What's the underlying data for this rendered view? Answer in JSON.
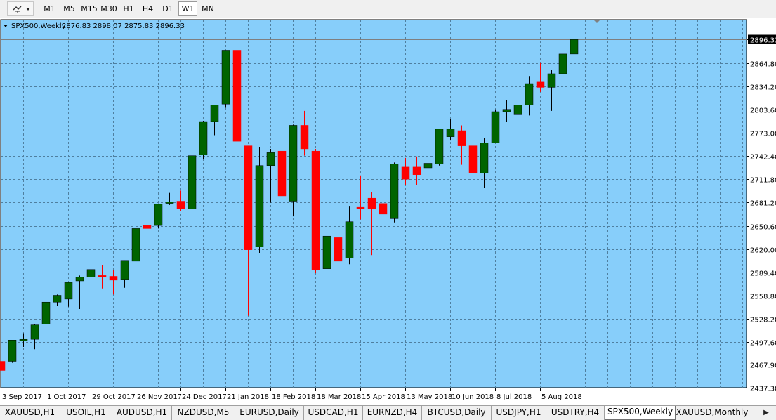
{
  "toolbar": {
    "timeframes": [
      "M1",
      "M5",
      "M15",
      "M30",
      "H1",
      "H4",
      "D1",
      "W1",
      "MN"
    ],
    "active_timeframe": "W1"
  },
  "chart_header": {
    "symbol": "SPX500,Weekly",
    "ohlc": "2876.83 2898.07 2875.83 2896.33"
  },
  "colors": {
    "background": "#87cefa",
    "bull": "#006400",
    "bear": "#ff0000",
    "wick": "#000000",
    "grid": "#4f7f9f",
    "price_line": "#7f7f7f"
  },
  "chart_data": {
    "type": "candlestick",
    "title": "SPX500,Weekly",
    "ylim": [
      2437.3,
      2911
    ],
    "y_ticks": [
      "2896.33",
      "2864.80",
      "2834.20",
      "2803.60",
      "2773.00",
      "2742.40",
      "2711.80",
      "2681.20",
      "2650.60",
      "2620.00",
      "2589.40",
      "2558.80",
      "2528.20",
      "2497.60",
      "2467.90",
      "2437.30"
    ],
    "current_price": "2896.33",
    "x_ticks": [
      "3 Sep 2017",
      "1 Oct 2017",
      "29 Oct 2017",
      "26 Nov 2017",
      "24 Dec 2017",
      "21 Jan 2018",
      "18 Feb 2018",
      "18 Mar 2018",
      "15 Apr 2018",
      "13 May 2018",
      "10 Jun 2018",
      "8 Jul 2018",
      "5 Aug 2018"
    ],
    "grid": true,
    "candles": [
      {
        "week": "3 Sep 2017",
        "o": 2472,
        "h": 2474,
        "l": 2438,
        "c": 2460
      },
      {
        "week": "10 Sep 2017",
        "o": 2472,
        "h": 2500,
        "l": 2470,
        "c": 2500
      },
      {
        "week": "17 Sep 2017",
        "o": 2500,
        "h": 2509,
        "l": 2491,
        "c": 2501
      },
      {
        "week": "24 Sep 2017",
        "o": 2501,
        "h": 2521,
        "l": 2488,
        "c": 2520
      },
      {
        "week": "1 Oct 2017",
        "o": 2521,
        "h": 2551,
        "l": 2519,
        "c": 2550
      },
      {
        "week": "8 Oct 2017",
        "o": 2550,
        "h": 2560,
        "l": 2545,
        "c": 2559
      },
      {
        "week": "15 Oct 2017",
        "o": 2554,
        "h": 2577,
        "l": 2544,
        "c": 2576
      },
      {
        "week": "22 Oct 2017",
        "o": 2578,
        "h": 2585,
        "l": 2541,
        "c": 2583
      },
      {
        "week": "29 Oct 2017",
        "o": 2583,
        "h": 2595,
        "l": 2578,
        "c": 2593
      },
      {
        "week": "5 Nov 2017",
        "o": 2585,
        "h": 2599,
        "l": 2568,
        "c": 2583
      },
      {
        "week": "12 Nov 2017",
        "o": 2584,
        "h": 2592,
        "l": 2560,
        "c": 2579
      },
      {
        "week": "19 Nov 2017",
        "o": 2580,
        "h": 2605,
        "l": 2569,
        "c": 2605
      },
      {
        "week": "26 Nov 2017",
        "o": 2604,
        "h": 2656,
        "l": 2604,
        "c": 2647
      },
      {
        "week": "3 Dec 2017",
        "o": 2651,
        "h": 2664,
        "l": 2623,
        "c": 2647
      },
      {
        "week": "10 Dec 2017",
        "o": 2651,
        "h": 2680,
        "l": 2647,
        "c": 2679
      },
      {
        "week": "17 Dec 2017",
        "o": 2681,
        "h": 2694,
        "l": 2678,
        "c": 2682
      },
      {
        "week": "24 Dec 2017",
        "o": 2683,
        "h": 2697,
        "l": 2670,
        "c": 2673
      },
      {
        "week": "31 Dec 2017",
        "o": 2673,
        "h": 2743,
        "l": 2673,
        "c": 2743
      },
      {
        "week": "7 Jan 2018",
        "o": 2744,
        "h": 2789,
        "l": 2739,
        "c": 2788
      },
      {
        "week": "14 Jan 2018",
        "o": 2788,
        "h": 2810,
        "l": 2770,
        "c": 2810
      },
      {
        "week": "21 Jan 2018",
        "o": 2811,
        "h": 2882,
        "l": 2806,
        "c": 2882
      },
      {
        "week": "28 Jan 2018",
        "o": 2882,
        "h": 2886,
        "l": 2751,
        "c": 2762
      },
      {
        "week": "4 Feb 2018",
        "o": 2756,
        "h": 2756,
        "l": 2532,
        "c": 2619
      },
      {
        "week": "11 Feb 2018",
        "o": 2623,
        "h": 2754,
        "l": 2615,
        "c": 2730
      },
      {
        "week": "18 Feb 2018",
        "o": 2730,
        "h": 2752,
        "l": 2681,
        "c": 2747
      },
      {
        "week": "25 Feb 2018",
        "o": 2749,
        "h": 2789,
        "l": 2646,
        "c": 2690
      },
      {
        "week": "4 Mar 2018",
        "o": 2683,
        "h": 2784,
        "l": 2663,
        "c": 2783
      },
      {
        "week": "11 Mar 2018",
        "o": 2783,
        "h": 2802,
        "l": 2743,
        "c": 2752
      },
      {
        "week": "18 Mar 2018",
        "o": 2749,
        "h": 2752,
        "l": 2588,
        "c": 2593
      },
      {
        "week": "25 Mar 2018",
        "o": 2594,
        "h": 2675,
        "l": 2586,
        "c": 2637
      },
      {
        "week": "1 Apr 2018",
        "o": 2635,
        "h": 2669,
        "l": 2556,
        "c": 2604
      },
      {
        "week": "8 Apr 2018",
        "o": 2608,
        "h": 2676,
        "l": 2600,
        "c": 2656
      },
      {
        "week": "15 Apr 2018",
        "o": 2675,
        "h": 2717,
        "l": 2659,
        "c": 2674
      },
      {
        "week": "22 Apr 2018",
        "o": 2687,
        "h": 2695,
        "l": 2612,
        "c": 2673
      },
      {
        "week": "29 Apr 2018",
        "o": 2680,
        "h": 2683,
        "l": 2594,
        "c": 2666
      },
      {
        "week": "6 May 2018",
        "o": 2660,
        "h": 2734,
        "l": 2655,
        "c": 2732
      },
      {
        "week": "13 May 2018",
        "o": 2728,
        "h": 2740,
        "l": 2704,
        "c": 2712
      },
      {
        "week": "20 May 2018",
        "o": 2728,
        "h": 2742,
        "l": 2704,
        "c": 2718
      },
      {
        "week": "27 May 2018",
        "o": 2727,
        "h": 2738,
        "l": 2679,
        "c": 2733
      },
      {
        "week": "3 Jun 2018",
        "o": 2732,
        "h": 2778,
        "l": 2730,
        "c": 2778
      },
      {
        "week": "10 Jun 2018",
        "o": 2768,
        "h": 2791,
        "l": 2763,
        "c": 2778
      },
      {
        "week": "17 Jun 2018",
        "o": 2776,
        "h": 2783,
        "l": 2731,
        "c": 2756
      },
      {
        "week": "24 Jun 2018",
        "o": 2756,
        "h": 2763,
        "l": 2693,
        "c": 2720
      },
      {
        "week": "1 Jul 2018",
        "o": 2720,
        "h": 2766,
        "l": 2701,
        "c": 2760
      },
      {
        "week": "8 Jul 2018",
        "o": 2760,
        "h": 2804,
        "l": 2760,
        "c": 2801
      },
      {
        "week": "15 Jul 2018",
        "o": 2801,
        "h": 2816,
        "l": 2788,
        "c": 2804
      },
      {
        "week": "22 Jul 2018",
        "o": 2797,
        "h": 2849,
        "l": 2793,
        "c": 2810
      },
      {
        "week": "29 Jul 2018",
        "o": 2810,
        "h": 2848,
        "l": 2796,
        "c": 2838
      },
      {
        "week": "5 Aug 2018",
        "o": 2840,
        "h": 2866,
        "l": 2827,
        "c": 2833
      },
      {
        "week": "12 Aug 2018",
        "o": 2833,
        "h": 2856,
        "l": 2802,
        "c": 2851
      },
      {
        "week": "19 Aug 2018",
        "o": 2851,
        "h": 2877,
        "l": 2843,
        "c": 2877
      },
      {
        "week": "26 Aug 2018",
        "o": 2877,
        "h": 2898,
        "l": 2876,
        "c": 2896
      }
    ]
  },
  "tabs": [
    "XAUUSD,H1",
    "USOIL,H1",
    "AUDUSD,H1",
    "NZDUSD,M5",
    "EURUSD,Daily",
    "USDCAD,H1",
    "EURNZD,H4",
    "BTCUSD,Daily",
    "USDJPY,H1",
    "USDTRY,H4",
    "SPX500,Weekly",
    "XAUUSD,Monthly"
  ],
  "active_tab": "SPX500,Weekly",
  "icons": [
    "chart-tools-icon",
    "dropdown-arrow-icon",
    "symbol-collapse-icon",
    "chart-shift-marker-icon",
    "tab-scroll-right-icon"
  ]
}
